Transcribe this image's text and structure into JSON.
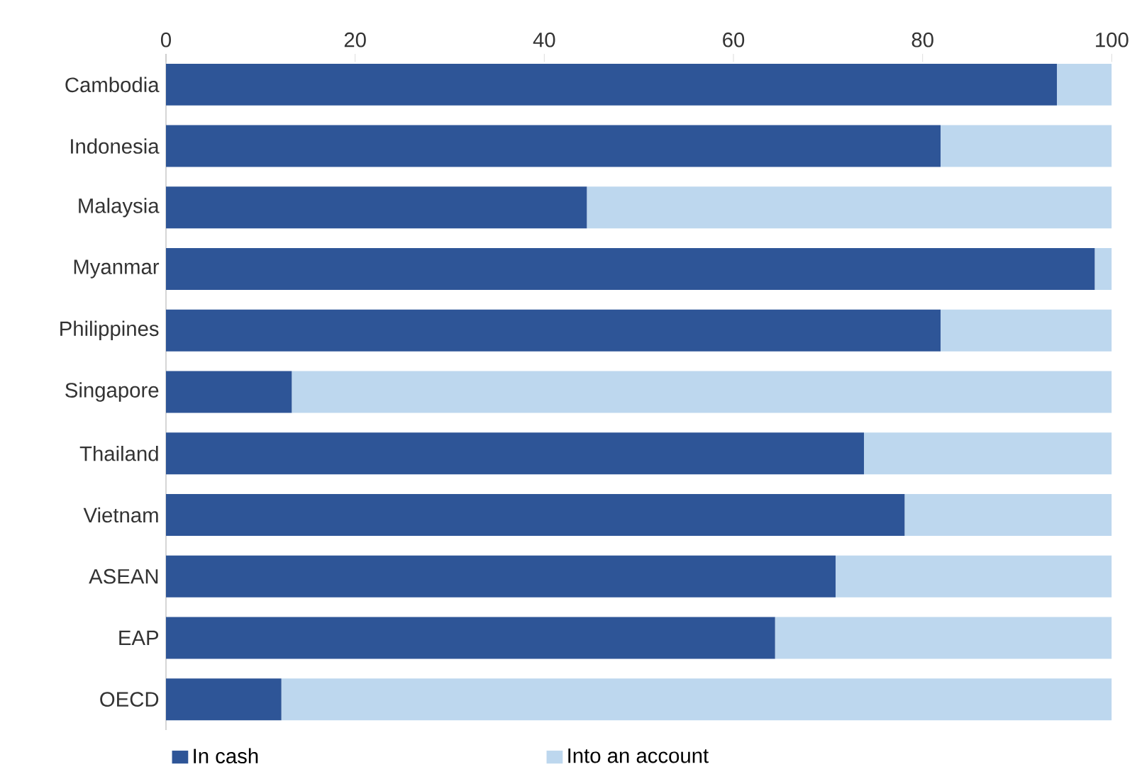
{
  "chart_data": {
    "type": "bar",
    "orientation": "horizontal",
    "stacked": true,
    "categories": [
      "Cambodia",
      "Indonesia",
      "Malaysia",
      "Myanmar",
      "Philippines",
      "Singapore",
      "Thailand",
      "Vietnam",
      "ASEAN",
      "EAP",
      "OECD"
    ],
    "series": [
      {
        "name": "In cash",
        "color": "#2e5597",
        "values": [
          94.2,
          81.9,
          44.5,
          98.2,
          81.9,
          13.3,
          73.8,
          78.1,
          70.8,
          64.4,
          12.2
        ]
      },
      {
        "name": "Into an account",
        "color": "#bdd7ee",
        "values": [
          5.8,
          18.1,
          55.5,
          1.8,
          18.1,
          86.7,
          26.2,
          21.9,
          29.2,
          35.6,
          87.8
        ]
      }
    ],
    "xlim": [
      0,
      100
    ],
    "xticks": [
      0,
      20,
      40,
      60,
      80,
      100
    ],
    "grid": false,
    "legend": "bottom left"
  }
}
